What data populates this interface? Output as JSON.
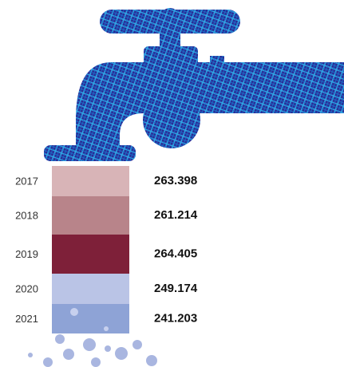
{
  "chart_data": {
    "type": "block-stack",
    "categories": [
      "2017",
      "2018",
      "2019",
      "2020",
      "2021"
    ],
    "values": [
      263.398,
      261.214,
      264.405,
      249.174,
      241.203
    ],
    "colors": [
      "#d8b4b7",
      "#b8848a",
      "#7e2039",
      "#bac4e6",
      "#8ea3d6"
    ]
  }
}
